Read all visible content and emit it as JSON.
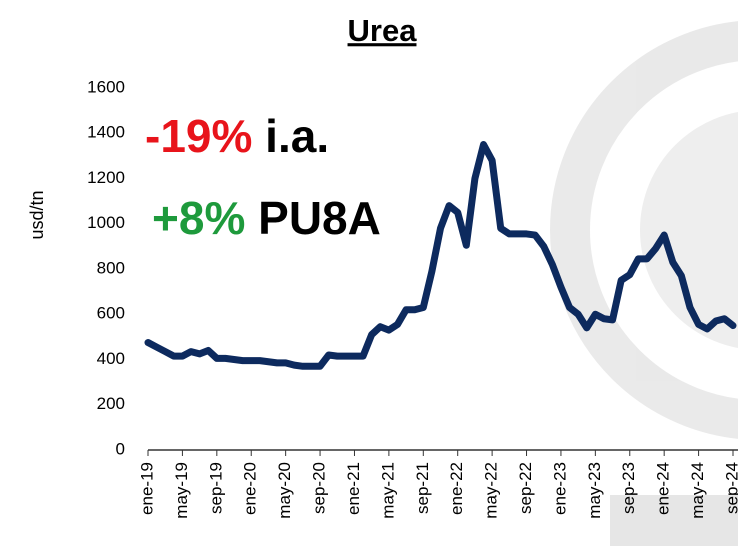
{
  "chart_data": {
    "type": "line",
    "title": "Urea",
    "y_label": "usd/tn",
    "annotations": [
      [
        {
          "text": "-19%",
          "color": "#e8141b"
        },
        {
          "text": "i.a.",
          "color": "#000000"
        }
      ],
      [
        {
          "text": "+8%",
          "color": "#1e9a3c"
        },
        {
          "text": "PU8A",
          "color": "#000000"
        }
      ]
    ],
    "categories": [
      "ene-19",
      null,
      null,
      null,
      "may-19",
      null,
      null,
      null,
      "sep-19",
      null,
      null,
      null,
      "ene-20",
      null,
      null,
      null,
      "may-20",
      null,
      null,
      null,
      "sep-20",
      null,
      null,
      null,
      "ene-21",
      null,
      null,
      null,
      "may-21",
      null,
      null,
      null,
      "sep-21",
      null,
      null,
      null,
      "ene-22",
      null,
      null,
      null,
      "may-22",
      null,
      null,
      null,
      "sep-22",
      null,
      null,
      null,
      "ene-23",
      null,
      null,
      null,
      "may-23",
      null,
      null,
      null,
      "sep-23",
      null,
      null,
      null,
      "ene-24",
      null,
      null,
      null,
      "may-24",
      null,
      null,
      null,
      "sep-24"
    ],
    "series": [
      {
        "name": "Urea",
        "color": "#0d2a5e",
        "values": [
          475,
          455,
          435,
          415,
          415,
          435,
          425,
          440,
          405,
          405,
          400,
          395,
          395,
          395,
          390,
          385,
          385,
          375,
          370,
          370,
          370,
          420,
          415,
          415,
          415,
          415,
          510,
          545,
          530,
          555,
          620,
          620,
          630,
          790,
          980,
          1080,
          1050,
          905,
          1200,
          1350,
          1280,
          980,
          955,
          955,
          955,
          950,
          900,
          820,
          720,
          630,
          600,
          540,
          600,
          580,
          575,
          750,
          775,
          845,
          845,
          890,
          950,
          830,
          770,
          630,
          555,
          535,
          570,
          580,
          550
        ]
      }
    ],
    "ylim": [
      0,
      1600
    ],
    "yticks": [
      0,
      200,
      400,
      600,
      800,
      1000,
      1200,
      1400,
      1600
    ],
    "grid": false
  }
}
